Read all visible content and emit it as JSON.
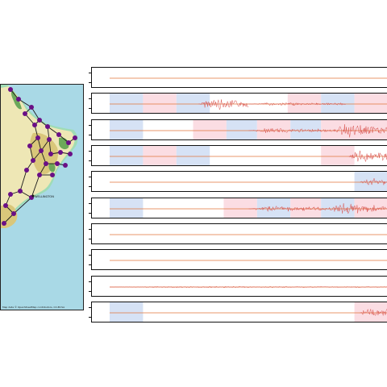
{
  "map": {
    "city_label": "WELLINGTON",
    "credit": "Map data © OpenStreetMap contributors, CC-BY-SA",
    "colors": {
      "sea": "#a9d9e6",
      "coast_glow": "#9fdcb5",
      "land": "#eee7b5",
      "terrain": "#d9c77a",
      "forest": "#6ca85a",
      "node": "#6a0f86",
      "edge": "#1a1a1a"
    }
  },
  "traces": {
    "colors": {
      "baseline": "#e0743a",
      "signal": "#d9534f",
      "band_blue": "#d6e2f5",
      "band_pink": "#fbdde3"
    },
    "rows": [
      {
        "bands": [],
        "events": []
      },
      {
        "bands": [
          [
            "blue",
            0,
            0.12
          ],
          [
            "pink",
            0.12,
            0.24
          ],
          [
            "blue",
            0.24,
            0.36
          ],
          [
            "pink",
            0.64,
            0.76
          ],
          [
            "blue",
            0.76,
            0.88
          ],
          [
            "pink",
            0.88,
            1
          ]
        ],
        "events": [
          [
            0.32,
            0.5,
            0.9
          ],
          [
            0.5,
            0.85,
            0.25
          ]
        ]
      },
      {
        "bands": [
          [
            "blue",
            0,
            0.12
          ],
          [
            "pink",
            0.3,
            0.42
          ],
          [
            "blue",
            0.42,
            0.53
          ],
          [
            "pink",
            0.53,
            0.65
          ],
          [
            "blue",
            0.65,
            0.76
          ],
          [
            "pink",
            0.76,
            1
          ]
        ],
        "events": [
          [
            0.5,
            0.8,
            0.35
          ],
          [
            0.8,
            1,
            1
          ]
        ]
      },
      {
        "bands": [
          [
            "blue",
            0,
            0.12
          ],
          [
            "pink",
            0.12,
            0.24
          ],
          [
            "blue",
            0.24,
            0.36
          ],
          [
            "pink",
            0.76,
            0.88
          ]
        ],
        "events": [
          [
            0.86,
            1,
            0.9
          ]
        ]
      },
      {
        "bands": [
          [
            "blue",
            0.88,
            1
          ]
        ],
        "events": [
          [
            0.9,
            1,
            0.6
          ]
        ]
      },
      {
        "bands": [
          [
            "blue",
            0,
            0.12
          ],
          [
            "pink",
            0.41,
            0.53
          ],
          [
            "blue",
            0.53,
            0.65
          ],
          [
            "pink",
            0.65,
            0.76
          ],
          [
            "blue",
            0.76,
            0.88
          ],
          [
            "pink",
            0.88,
            1
          ]
        ],
        "events": [
          [
            0.5,
            0.78,
            0.4
          ],
          [
            0.78,
            1,
            0.8
          ]
        ]
      },
      {
        "bands": [],
        "events": []
      },
      {
        "bands": [],
        "events": []
      },
      {
        "bands": [],
        "events": [
          [
            0,
            1,
            0.12
          ]
        ]
      },
      {
        "bands": [
          [
            "blue",
            0,
            0.12
          ],
          [
            "pink",
            0.88,
            1
          ]
        ],
        "events": [
          [
            0.9,
            1,
            0.9
          ]
        ]
      }
    ]
  }
}
